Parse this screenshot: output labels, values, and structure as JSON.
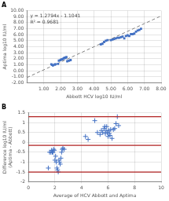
{
  "chart_data": [
    {
      "type": "scatter",
      "title": "A",
      "xlabel": "Abbott HCV log10 IU/ml",
      "ylabel": "Aptima log10 IU/ml",
      "xlim": [
        0.0,
        8.0
      ],
      "ylim": [
        -2.0,
        10.0
      ],
      "xticks": [
        {
          "value": 1.0,
          "label": "1.00"
        },
        {
          "value": 2.0,
          "label": "2.00"
        },
        {
          "value": 3.0,
          "label": "3.00"
        },
        {
          "value": 4.0,
          "label": "4.00"
        },
        {
          "value": 5.0,
          "label": "5.00"
        },
        {
          "value": 6.0,
          "label": "6.00"
        },
        {
          "value": 7.0,
          "label": "7.00"
        },
        {
          "value": 8.0,
          "label": "8.00"
        }
      ],
      "yticks": [
        {
          "value": -2.0,
          "label": "-2.00"
        },
        {
          "value": -1.0,
          "label": "-1.00"
        },
        {
          "value": 0.0,
          "label": "0.00"
        },
        {
          "value": 1.0,
          "label": "1.00"
        },
        {
          "value": 2.0,
          "label": "2.00"
        },
        {
          "value": 3.0,
          "label": "3.00"
        },
        {
          "value": 4.0,
          "label": "4.00"
        },
        {
          "value": 5.0,
          "label": "5.00"
        },
        {
          "value": 6.0,
          "label": "6.00"
        },
        {
          "value": 7.0,
          "label": "7.00"
        },
        {
          "value": 8.0,
          "label": "8.00"
        },
        {
          "value": 9.0,
          "label": "9.00"
        },
        {
          "value": 10.0,
          "label": "10.00"
        }
      ],
      "grid": true,
      "annotations": [
        "y = 1.2794x - 1.1041",
        "R² = 0.9681"
      ],
      "series": [
        {
          "type": "scatter",
          "color": "#4472c4",
          "marker": "square",
          "x": [
            1.45,
            1.5,
            1.55,
            1.65,
            1.7,
            1.85,
            1.9,
            2.0,
            2.05,
            2.1,
            2.15,
            2.2,
            2.25,
            2.3,
            2.35,
            2.4,
            2.5,
            2.6,
            4.4,
            4.5,
            4.6,
            4.7,
            4.8,
            5.0,
            5.1,
            5.2,
            5.3,
            5.4,
            5.5,
            5.6,
            5.7,
            5.8,
            5.9,
            6.0,
            6.1,
            6.2,
            6.3,
            6.4,
            6.5,
            6.6,
            6.7,
            6.8
          ],
          "values": [
            1.1,
            1.0,
            0.9,
            1.05,
            1.1,
            1.15,
            1.7,
            1.8,
            1.9,
            1.9,
            2.0,
            2.1,
            2.2,
            2.15,
            2.3,
            1.6,
            1.7,
            1.8,
            4.4,
            4.5,
            4.8,
            5.0,
            5.1,
            5.1,
            5.2,
            5.3,
            5.4,
            5.5,
            5.5,
            5.6,
            5.7,
            5.4,
            5.8,
            5.9,
            5.8,
            6.1,
            6.1,
            6.2,
            6.5,
            6.7,
            6.8,
            7.0
          ]
        },
        {
          "type": "line",
          "color": "#808080",
          "line_style": "dashed",
          "x": [
            0.0,
            8.0
          ],
          "values": [
            -1.1041,
            9.1311
          ]
        }
      ]
    },
    {
      "type": "scatter",
      "title": "B",
      "xlabel": "Average of HCV Abbott and Aptima",
      "ylabel": "Difference log10 IU/ml (Aptima - Abbott)",
      "xlim": [
        0,
        10
      ],
      "ylim": [
        -2.0,
        1.5
      ],
      "xticks": [
        0,
        2,
        4,
        6,
        8,
        10
      ],
      "yticks": [
        -2,
        -1.5,
        -1,
        -0.5,
        0,
        0.5,
        1,
        1.5
      ],
      "grid": true,
      "hlines": [
        {
          "value": 1.3,
          "color": "#b22222"
        },
        {
          "value": -0.15,
          "color": "#b22222"
        },
        {
          "value": -1.5,
          "color": "#b22222"
        }
      ],
      "series": [
        {
          "type": "scatter",
          "color": "#4472c4",
          "marker": "plus",
          "x": [
            1.5,
            1.6,
            1.7,
            1.75,
            1.8,
            1.85,
            1.9,
            1.95,
            2.0,
            2.05,
            2.1,
            2.15,
            2.2,
            2.25,
            2.3,
            2.35,
            2.4,
            2.45,
            2.5,
            2.55,
            2.6,
            2.7,
            4.3,
            4.5,
            5.0,
            5.2,
            5.4,
            5.5,
            5.6,
            5.7,
            5.75,
            5.8,
            5.85,
            5.9,
            5.95,
            6.0,
            6.05,
            6.1,
            6.15,
            6.2,
            6.3,
            6.4,
            6.5,
            6.6,
            6.7,
            6.8
          ],
          "values": [
            -1.3,
            -0.5,
            -0.5,
            -0.4,
            -0.5,
            -0.5,
            -0.35,
            -0.4,
            -0.9,
            -0.7,
            -1.0,
            -1.3,
            -1.4,
            -1.5,
            -0.9,
            -1.0,
            -1.1,
            -0.8,
            -0.5,
            -0.35,
            -0.3,
            -0.35,
            0.3,
            0.15,
            1.1,
            0.5,
            0.4,
            0.6,
            0.5,
            0.7,
            0.8,
            0.45,
            0.6,
            0.8,
            0.5,
            0.3,
            0.6,
            0.45,
            0.35,
            0.65,
            0.2,
            0.65,
            0.7,
            0.95,
            1.3,
            0.85
          ]
        }
      ]
    }
  ]
}
